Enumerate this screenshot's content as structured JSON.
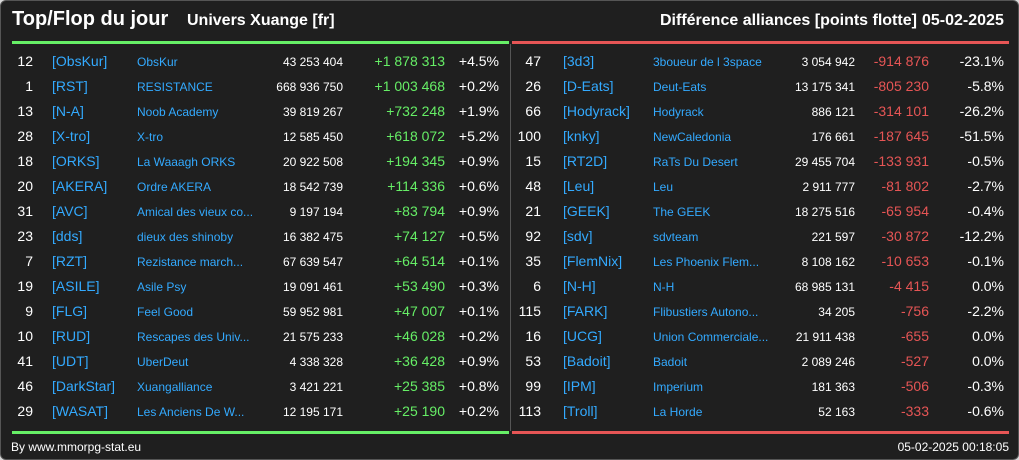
{
  "header": {
    "title": "Top/Flop du jour",
    "universe": "Univers Xuange [fr]",
    "subtitle": "Différence alliances [points flotte]",
    "date": "05-02-2025"
  },
  "colors": {
    "top": "#66ee66",
    "flop": "#e65555",
    "link": "#33aaff",
    "background": "#1f1f1f"
  },
  "top": [
    {
      "rank": "12",
      "tag": "[ObsKur]",
      "name": "ObsKur",
      "points": "43 253 404",
      "delta": "+1 878 313",
      "pct": "+4.5%"
    },
    {
      "rank": "1",
      "tag": "[RST]",
      "name": "RESISTANCE",
      "points": "668 936 750",
      "delta": "+1 003 468",
      "pct": "+0.2%"
    },
    {
      "rank": "13",
      "tag": "[N-A]",
      "name": "Noob Academy",
      "points": "39 819 267",
      "delta": "+732 248",
      "pct": "+1.9%"
    },
    {
      "rank": "28",
      "tag": "[X-tro]",
      "name": "X-tro",
      "points": "12 585 450",
      "delta": "+618 072",
      "pct": "+5.2%"
    },
    {
      "rank": "18",
      "tag": "[ORKS]",
      "name": "La Waaagh ORKS",
      "points": "20 922 508",
      "delta": "+194 345",
      "pct": "+0.9%"
    },
    {
      "rank": "20",
      "tag": "[AKERA]",
      "name": "Ordre AKERA",
      "points": "18 542 739",
      "delta": "+114 336",
      "pct": "+0.6%"
    },
    {
      "rank": "31",
      "tag": "[AVC]",
      "name": "Amical des vieux co...",
      "points": "9 197 194",
      "delta": "+83 794",
      "pct": "+0.9%"
    },
    {
      "rank": "23",
      "tag": "[dds]",
      "name": "dieux des shinoby",
      "points": "16 382 475",
      "delta": "+74 127",
      "pct": "+0.5%"
    },
    {
      "rank": "7",
      "tag": "[RZT]",
      "name": "Rezistance march...",
      "points": "67 639 547",
      "delta": "+64 514",
      "pct": "+0.1%"
    },
    {
      "rank": "19",
      "tag": "[ASILE]",
      "name": "Asile Psy",
      "points": "19 091 461",
      "delta": "+53 490",
      "pct": "+0.3%"
    },
    {
      "rank": "9",
      "tag": "[FLG]",
      "name": "Feel Good",
      "points": "59 952 981",
      "delta": "+47 007",
      "pct": "+0.1%"
    },
    {
      "rank": "10",
      "tag": "[RUD]",
      "name": "Rescapes des Univ...",
      "points": "21 575 233",
      "delta": "+46 028",
      "pct": "+0.2%"
    },
    {
      "rank": "41",
      "tag": "[UDT]",
      "name": "UberDeut",
      "points": "4 338 328",
      "delta": "+36 428",
      "pct": "+0.9%"
    },
    {
      "rank": "46",
      "tag": "[DarkStar]",
      "name": "Xuangalliance",
      "points": "3 421 221",
      "delta": "+25 385",
      "pct": "+0.8%"
    },
    {
      "rank": "29",
      "tag": "[WASAT]",
      "name": "Les Anciens De W...",
      "points": "12 195 171",
      "delta": "+25 190",
      "pct": "+0.2%"
    }
  ],
  "flop": [
    {
      "rank": "47",
      "tag": "[3d3]",
      "name": "3boueur de l 3space",
      "points": "3 054 942",
      "delta": "-914 876",
      "pct": "-23.1%"
    },
    {
      "rank": "26",
      "tag": "[D-Eats]",
      "name": "Deut-Eats",
      "points": "13 175 341",
      "delta": "-805 230",
      "pct": "-5.8%"
    },
    {
      "rank": "66",
      "tag": "[Hodyrack]",
      "name": "Hodyrack",
      "points": "886 121",
      "delta": "-314 101",
      "pct": "-26.2%"
    },
    {
      "rank": "100",
      "tag": "[knky]",
      "name": "NewCaledonia",
      "points": "176 661",
      "delta": "-187 645",
      "pct": "-51.5%"
    },
    {
      "rank": "15",
      "tag": "[RT2D]",
      "name": "RaTs Du Desert",
      "points": "29 455 704",
      "delta": "-133 931",
      "pct": "-0.5%"
    },
    {
      "rank": "48",
      "tag": "[Leu]",
      "name": "Leu",
      "points": "2 911 777",
      "delta": "-81 802",
      "pct": "-2.7%"
    },
    {
      "rank": "21",
      "tag": "[GEEK]",
      "name": "The GEEK",
      "points": "18 275 516",
      "delta": "-65 954",
      "pct": "-0.4%"
    },
    {
      "rank": "92",
      "tag": "[sdv]",
      "name": "sdvteam",
      "points": "221 597",
      "delta": "-30 872",
      "pct": "-12.2%"
    },
    {
      "rank": "35",
      "tag": "[FlemNix]",
      "name": "Les Phoenix Flem...",
      "points": "8 108 162",
      "delta": "-10 653",
      "pct": "-0.1%"
    },
    {
      "rank": "6",
      "tag": "[N-H]",
      "name": "N-H",
      "points": "68 985 131",
      "delta": "-4 415",
      "pct": "0.0%"
    },
    {
      "rank": "115",
      "tag": "[FARK]",
      "name": "Flibustiers Autono...",
      "points": "34 205",
      "delta": "-756",
      "pct": "-2.2%"
    },
    {
      "rank": "16",
      "tag": "[UCG]",
      "name": "Union Commerciale...",
      "points": "21 911 438",
      "delta": "-655",
      "pct": "0.0%"
    },
    {
      "rank": "53",
      "tag": "[Badoit]",
      "name": "Badoit",
      "points": "2 089 246",
      "delta": "-527",
      "pct": "0.0%"
    },
    {
      "rank": "99",
      "tag": "[IPM]",
      "name": "Imperium",
      "points": "181 363",
      "delta": "-506",
      "pct": "-0.3%"
    },
    {
      "rank": "113",
      "tag": "[Troll]",
      "name": "La Horde",
      "points": "52 163",
      "delta": "-333",
      "pct": "-0.6%"
    }
  ],
  "footer": {
    "credit": "By www.mmorpg-stat.eu",
    "timestamp": "05-02-2025 00:18:05"
  }
}
